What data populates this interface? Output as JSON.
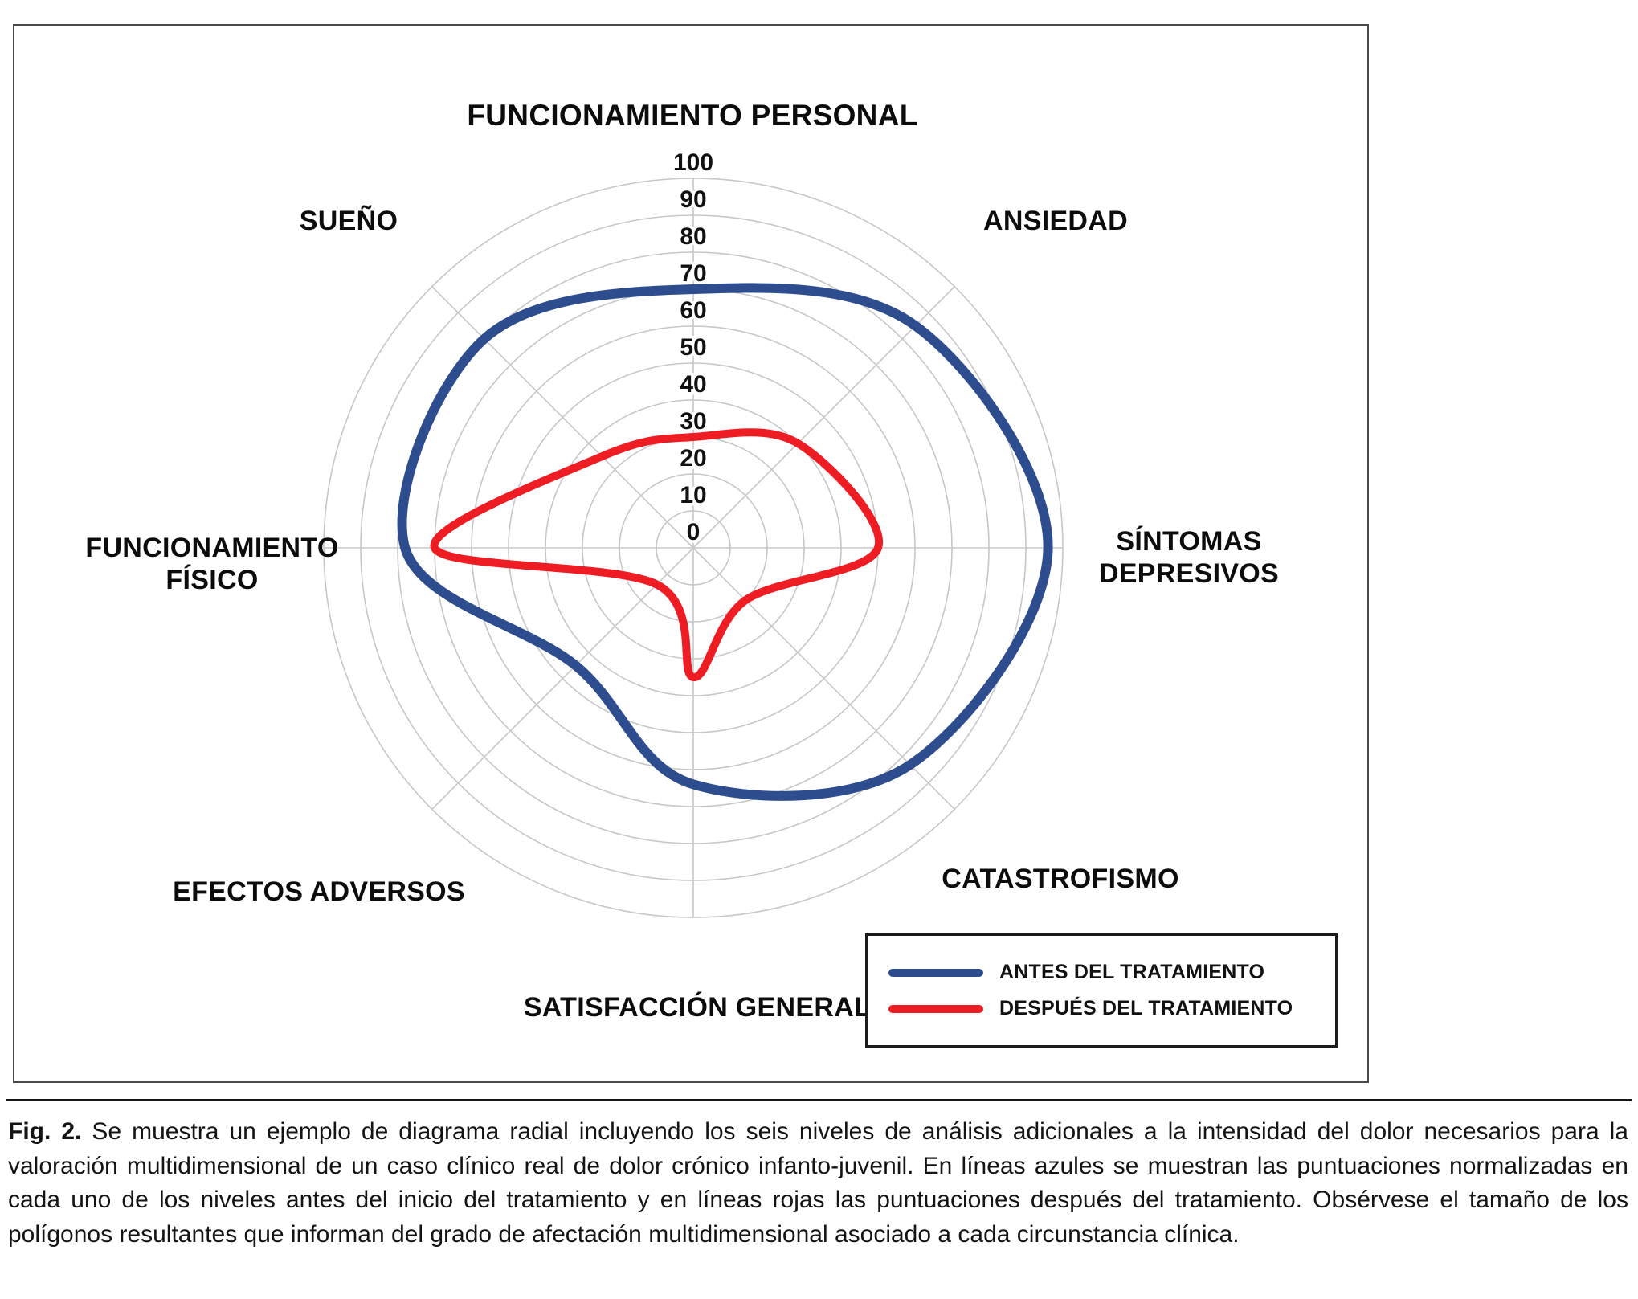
{
  "figure": {
    "caption_label": "Fig. 2.",
    "caption_text": "Se muestra un ejemplo de diagrama radial incluyendo los seis niveles de análisis adicionales a la intensidad del dolor necesarios para la valoración multidimensional de un caso clínico real de dolor crónico infanto-juvenil. En líneas azules se muestran las puntuaciones normalizadas en cada uno de los niveles antes del inicio del tratamiento y en líneas rojas las puntuaciones después del tratamiento. Obsérvese el tamaño de los polígonos resultantes que informan del grado de afectación multidimensional asociado a cada circunstancia clínica."
  },
  "legend": {
    "items": [
      {
        "label": "ANTES DEL TRATAMIENTO",
        "color": "#2e4d8e"
      },
      {
        "label": "DESPUÉS DEL TRATAMIENTO",
        "color": "#ee1c23"
      }
    ]
  },
  "chart_data": {
    "type": "radar",
    "title": "",
    "categories": [
      "FUNCIONAMIENTO PERSONAL",
      "ANSIEDAD",
      "SÍNTOMAS DEPRESIVOS",
      "CATASTROFISMO",
      "SATISFACCIÓN GENERAL",
      "EFECTOS ADVERSOS",
      "FUNCIONAMIENTO FÍSICO",
      "SUEÑO"
    ],
    "series": [
      {
        "name": "ANTES DEL TRATAMIENTO",
        "color": "#2e4d8e",
        "values": [
          70,
          85,
          96,
          83,
          64,
          45,
          78,
          80
        ]
      },
      {
        "name": "DESPUÉS DEL TRATAMIENTO",
        "color": "#ee1c23",
        "values": [
          30,
          40,
          50,
          20,
          35,
          14,
          70,
          35
        ]
      }
    ],
    "radial_axis": {
      "min": 0,
      "max": 100,
      "tick_interval": 10,
      "ticks": [
        0,
        10,
        20,
        30,
        40,
        50,
        60,
        70,
        80,
        90,
        100
      ]
    },
    "grid": true,
    "grid_shape": "circular",
    "legend_position": "bottom-right",
    "line_style": "smooth"
  }
}
